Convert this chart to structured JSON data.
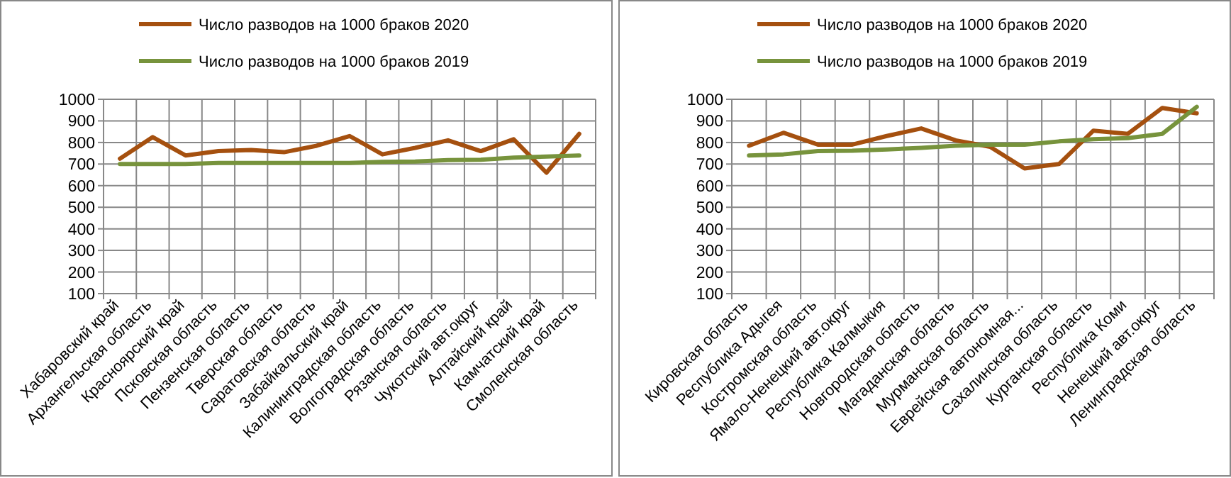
{
  "chart_data": [
    {
      "type": "line",
      "categories": [
        "Хабаровский край",
        "Архангельская область",
        "Красноярский край",
        "Псковская область",
        "Пензенская область",
        "Тверская область",
        "Саратовская область",
        "Забайкальский край",
        "Калининградская область",
        "Волгоградская область",
        "Рязанская область",
        "Чукотский  авт.округ",
        "Алтайский край",
        "Камчатский край",
        "Смоленская область"
      ],
      "series": [
        {
          "name": "Число разводов на 1000 браков 2020",
          "color": "#a5500f",
          "values": [
            725,
            825,
            740,
            760,
            765,
            755,
            785,
            830,
            745,
            775,
            810,
            760,
            815,
            660,
            840
          ]
        },
        {
          "name": "Число разводов на 1000 браков 2019",
          "color": "#77933c",
          "values": [
            700,
            700,
            700,
            705,
            705,
            705,
            705,
            705,
            710,
            712,
            718,
            720,
            730,
            735,
            740
          ]
        }
      ],
      "ylim": [
        100,
        1000
      ],
      "yticks": [
        100,
        200,
        300,
        400,
        500,
        600,
        700,
        800,
        900,
        1000
      ],
      "grid": true,
      "legend": "top",
      "marker": "none"
    },
    {
      "type": "line",
      "categories": [
        "Кировская область",
        "Республика Адыгея",
        "Костромская область",
        "Ямало-Ненецкий  авт.округ",
        "Республика Калмыкия",
        "Новгородская область",
        "Магаданская область",
        "Мурманская область",
        "Еврейская автономная...",
        "Сахалинская область",
        "Курганская область",
        "Республика Коми",
        "Ненецкий  авт.округ",
        "Ленинградская область"
      ],
      "series": [
        {
          "name": "Число разводов на 1000 браков 2020",
          "color": "#a5500f",
          "values": [
            785,
            845,
            790,
            790,
            830,
            865,
            810,
            780,
            680,
            700,
            855,
            840,
            960,
            935
          ]
        },
        {
          "name": "Число разводов на 1000 браков 2019",
          "color": "#77933c",
          "values": [
            740,
            745,
            760,
            762,
            768,
            775,
            785,
            790,
            790,
            805,
            815,
            820,
            840,
            965
          ]
        }
      ],
      "ylim": [
        100,
        1000
      ],
      "yticks": [
        100,
        200,
        300,
        400,
        500,
        600,
        700,
        800,
        900,
        1000
      ],
      "grid": true,
      "legend": "top",
      "marker": "none"
    }
  ]
}
